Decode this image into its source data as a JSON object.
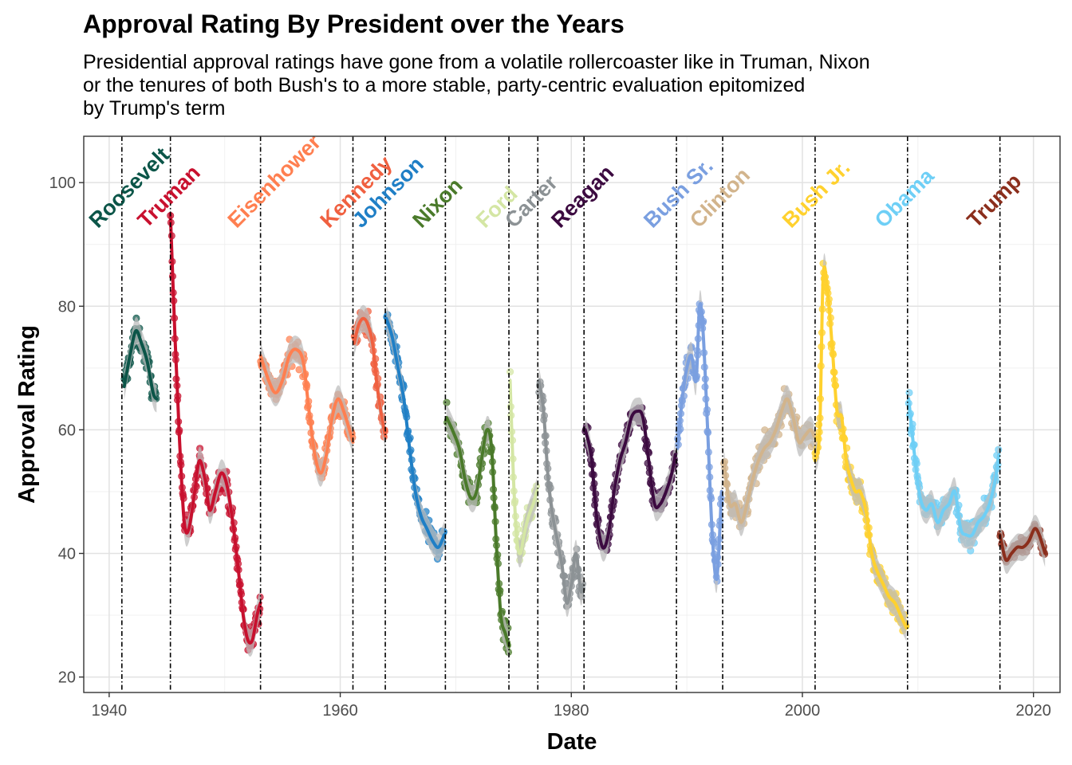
{
  "chart_data": {
    "type": "scatter",
    "title": "Approval Rating By President over the Years",
    "subtitle_lines": [
      "Presidential approval ratings have gone from a volatile rollercoaster like in Truman, Nixon",
      "or the tenures of both Bush's to a more stable, party-centric evaluation epitomized",
      "by Trump's term"
    ],
    "xlabel": "Date",
    "ylabel": "Approval Rating",
    "xlim": [
      1937.8,
      2022.3
    ],
    "ylim": [
      17.5,
      107.5
    ],
    "x_ticks": [
      1940,
      1960,
      1980,
      2000,
      2020
    ],
    "y_ticks": [
      20,
      40,
      60,
      80,
      100
    ],
    "grid": true,
    "legend": "none",
    "term_boundaries": [
      1941.1,
      1945.3,
      1953.1,
      1961.1,
      1963.9,
      1969.1,
      1974.6,
      1977.1,
      1981.1,
      1989.1,
      1993.1,
      2001.1,
      2009.1,
      2017.1
    ],
    "series": [
      {
        "name": "Roosevelt",
        "color": "#0b5548",
        "start": 1941.1,
        "end": 1944.1,
        "trend": [
          [
            1941.3,
            67
          ],
          [
            1941.8,
            72
          ],
          [
            1942.3,
            76
          ],
          [
            1942.8,
            74
          ],
          [
            1943.3,
            71
          ],
          [
            1943.8,
            66
          ],
          [
            1944.1,
            65
          ]
        ]
      },
      {
        "name": "Truman",
        "color": "#c8102e",
        "start": 1945.3,
        "end": 1953.1,
        "trend": [
          [
            1945.3,
            95
          ],
          [
            1945.7,
            75
          ],
          [
            1946.1,
            58
          ],
          [
            1946.5,
            45
          ],
          [
            1946.9,
            44
          ],
          [
            1947.4,
            50
          ],
          [
            1947.8,
            55
          ],
          [
            1948.3,
            52
          ],
          [
            1948.7,
            47
          ],
          [
            1949.2,
            50
          ],
          [
            1949.7,
            53
          ],
          [
            1950.2,
            51
          ],
          [
            1950.7,
            45
          ],
          [
            1951.2,
            37
          ],
          [
            1951.6,
            30
          ],
          [
            1952.0,
            26
          ],
          [
            1952.4,
            26
          ],
          [
            1952.8,
            30
          ],
          [
            1953.1,
            32
          ]
        ]
      },
      {
        "name": "Eisenhower",
        "color": "#ff7f50",
        "start": 1953.1,
        "end": 1961.1,
        "trend": [
          [
            1953.1,
            72
          ],
          [
            1953.8,
            68
          ],
          [
            1954.4,
            66
          ],
          [
            1955.0,
            68
          ],
          [
            1955.6,
            72
          ],
          [
            1956.2,
            73
          ],
          [
            1956.8,
            71
          ],
          [
            1957.3,
            63
          ],
          [
            1957.8,
            56
          ],
          [
            1958.3,
            53
          ],
          [
            1958.8,
            56
          ],
          [
            1959.3,
            62
          ],
          [
            1959.8,
            65
          ],
          [
            1960.3,
            63
          ],
          [
            1960.8,
            60
          ],
          [
            1961.1,
            58
          ]
        ]
      },
      {
        "name": "Kennedy",
        "color": "#f06040",
        "start": 1961.1,
        "end": 1963.9,
        "trend": [
          [
            1961.2,
            74
          ],
          [
            1961.6,
            77
          ],
          [
            1962.0,
            78
          ],
          [
            1962.4,
            77
          ],
          [
            1962.8,
            74
          ],
          [
            1963.2,
            67
          ],
          [
            1963.6,
            62
          ],
          [
            1963.9,
            59
          ]
        ]
      },
      {
        "name": "Johnson",
        "color": "#1f7fc6",
        "start": 1963.9,
        "end": 1969.1,
        "trend": [
          [
            1964.0,
            78
          ],
          [
            1964.5,
            75
          ],
          [
            1965.0,
            70
          ],
          [
            1965.5,
            65
          ],
          [
            1966.0,
            57
          ],
          [
            1966.5,
            50
          ],
          [
            1967.0,
            46
          ],
          [
            1967.5,
            44
          ],
          [
            1968.0,
            42
          ],
          [
            1968.5,
            41
          ],
          [
            1969.0,
            43
          ]
        ]
      },
      {
        "name": "Nixon",
        "color": "#4a7a2a",
        "start": 1969.1,
        "end": 1974.6,
        "trend": [
          [
            1969.2,
            62
          ],
          [
            1969.7,
            60
          ],
          [
            1970.3,
            57
          ],
          [
            1970.8,
            52
          ],
          [
            1971.3,
            49
          ],
          [
            1971.8,
            50
          ],
          [
            1972.3,
            56
          ],
          [
            1972.7,
            60
          ],
          [
            1973.1,
            57
          ],
          [
            1973.5,
            42
          ],
          [
            1973.9,
            30
          ],
          [
            1974.3,
            27
          ],
          [
            1974.6,
            25
          ]
        ]
      },
      {
        "name": "Ford",
        "color": "#d4e6a4",
        "start": 1974.6,
        "end": 1977.1,
        "trend": [
          [
            1974.7,
            68
          ],
          [
            1975.0,
            52
          ],
          [
            1975.3,
            42
          ],
          [
            1975.6,
            40
          ],
          [
            1975.9,
            43
          ],
          [
            1976.3,
            46
          ],
          [
            1976.7,
            48
          ],
          [
            1977.0,
            50
          ]
        ]
      },
      {
        "name": "Carter",
        "color": "#8c9295",
        "start": 1977.1,
        "end": 1981.1,
        "trend": [
          [
            1977.2,
            68
          ],
          [
            1977.6,
            63
          ],
          [
            1978.0,
            52
          ],
          [
            1978.4,
            46
          ],
          [
            1978.8,
            42
          ],
          [
            1979.2,
            38
          ],
          [
            1979.6,
            32
          ],
          [
            1980.0,
            35
          ],
          [
            1980.4,
            40
          ],
          [
            1980.8,
            34
          ],
          [
            1981.0,
            35
          ]
        ]
      },
      {
        "name": "Reagan",
        "color": "#3c0a40",
        "start": 1981.1,
        "end": 1989.1,
        "trend": [
          [
            1981.2,
            60
          ],
          [
            1981.7,
            56
          ],
          [
            1982.2,
            46
          ],
          [
            1982.7,
            41
          ],
          [
            1983.2,
            43
          ],
          [
            1983.7,
            50
          ],
          [
            1984.2,
            55
          ],
          [
            1984.7,
            58
          ],
          [
            1985.2,
            62
          ],
          [
            1985.7,
            63
          ],
          [
            1986.2,
            62
          ],
          [
            1986.7,
            55
          ],
          [
            1987.2,
            48
          ],
          [
            1987.7,
            48
          ],
          [
            1988.2,
            50
          ],
          [
            1988.7,
            53
          ],
          [
            1989.0,
            56
          ]
        ]
      },
      {
        "name": "Bush Sr.",
        "color": "#7a9fe0",
        "start": 1989.1,
        "end": 1993.1,
        "trend": [
          [
            1989.2,
            57
          ],
          [
            1989.6,
            65
          ],
          [
            1990.0,
            70
          ],
          [
            1990.4,
            72
          ],
          [
            1990.8,
            68
          ],
          [
            1991.1,
            80
          ],
          [
            1991.4,
            76
          ],
          [
            1991.8,
            60
          ],
          [
            1992.2,
            43
          ],
          [
            1992.6,
            36
          ],
          [
            1993.0,
            50
          ]
        ]
      },
      {
        "name": "Clinton",
        "color": "#d2b48c",
        "start": 1993.1,
        "end": 2001.1,
        "trend": [
          [
            1993.2,
            55
          ],
          [
            1993.7,
            48
          ],
          [
            1994.2,
            48
          ],
          [
            1994.7,
            45
          ],
          [
            1995.2,
            48
          ],
          [
            1995.7,
            52
          ],
          [
            1996.2,
            55
          ],
          [
            1996.7,
            57
          ],
          [
            1997.2,
            58
          ],
          [
            1997.7,
            60
          ],
          [
            1998.2,
            63
          ],
          [
            1998.7,
            65
          ],
          [
            1999.2,
            62
          ],
          [
            1999.7,
            58
          ],
          [
            2000.2,
            59
          ],
          [
            2000.7,
            60
          ],
          [
            2001.0,
            59
          ]
        ]
      },
      {
        "name": "Bush Jr.",
        "color": "#ffd12e",
        "start": 2001.1,
        "end": 2009.1,
        "trend": [
          [
            2001.1,
            55
          ],
          [
            2001.5,
            60
          ],
          [
            2001.8,
            85
          ],
          [
            2002.2,
            82
          ],
          [
            2002.6,
            73
          ],
          [
            2003.0,
            63
          ],
          [
            2003.4,
            62
          ],
          [
            2003.8,
            55
          ],
          [
            2004.2,
            52
          ],
          [
            2004.6,
            50
          ],
          [
            2005.0,
            50
          ],
          [
            2005.5,
            47
          ],
          [
            2006.0,
            40
          ],
          [
            2006.5,
            37
          ],
          [
            2007.0,
            35
          ],
          [
            2007.5,
            33
          ],
          [
            2008.0,
            32
          ],
          [
            2008.5,
            30
          ],
          [
            2009.0,
            28
          ]
        ]
      },
      {
        "name": "Obama",
        "color": "#6ecff6",
        "start": 2009.1,
        "end": 2017.1,
        "trend": [
          [
            2009.2,
            65
          ],
          [
            2009.7,
            56
          ],
          [
            2010.2,
            49
          ],
          [
            2010.7,
            47
          ],
          [
            2011.2,
            48
          ],
          [
            2011.7,
            45
          ],
          [
            2012.2,
            47
          ],
          [
            2012.7,
            48
          ],
          [
            2013.2,
            50
          ],
          [
            2013.7,
            44
          ],
          [
            2014.2,
            43
          ],
          [
            2014.7,
            43
          ],
          [
            2015.2,
            45
          ],
          [
            2015.7,
            46
          ],
          [
            2016.2,
            48
          ],
          [
            2016.7,
            52
          ],
          [
            2017.0,
            56
          ]
        ]
      },
      {
        "name": "Trump",
        "color": "#8b2e1c",
        "start": 2017.1,
        "end": 2021.1,
        "trend": [
          [
            2017.1,
            43
          ],
          [
            2017.6,
            39
          ],
          [
            2018.1,
            40
          ],
          [
            2018.6,
            41
          ],
          [
            2019.1,
            41
          ],
          [
            2019.6,
            42
          ],
          [
            2020.1,
            44
          ],
          [
            2020.5,
            43
          ],
          [
            2021.0,
            40
          ]
        ]
      }
    ]
  }
}
